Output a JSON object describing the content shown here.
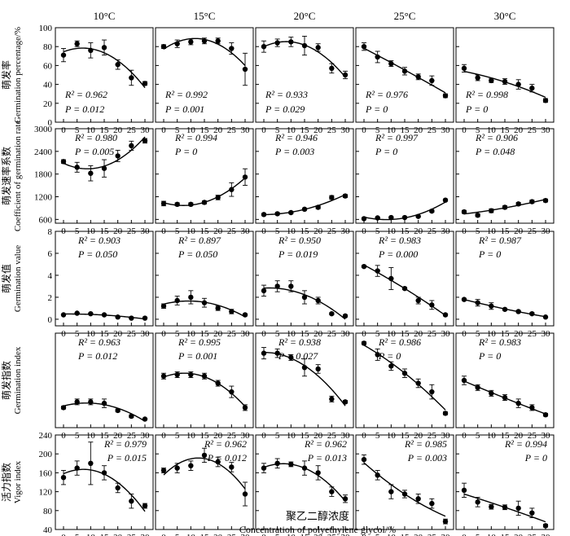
{
  "temperatures": [
    "10°C",
    "15°C",
    "20°C",
    "25°C",
    "30°C"
  ],
  "x_ticks": [
    0,
    5,
    10,
    15,
    20,
    25,
    30
  ],
  "xlabel_cn": "聚乙二醇浓度",
  "xlabel_en": "Concentration of polyethylene glycol/%",
  "rows": [
    {
      "ylabel_cn": "萌发率",
      "ylabel_en": "Germination percentage/%",
      "ylim": [
        0,
        100
      ],
      "yticks": [
        0,
        20,
        40,
        60,
        80,
        100
      ],
      "annot_pos": "bottom-left"
    },
    {
      "ylabel_cn": "萌发速率系数",
      "ylabel_en": "Coefficient of germination rate",
      "ylim": [
        500,
        3000
      ],
      "yticks": [
        600,
        1200,
        1800,
        2400,
        3000
      ],
      "annot_pos": "top-left"
    },
    {
      "ylabel_cn": "萌发值",
      "ylabel_en": "Germination value",
      "ylim": [
        -0.6,
        8
      ],
      "yticks": [
        0,
        2,
        4,
        6,
        8
      ],
      "annot_pos": "top-center"
    },
    {
      "ylabel_cn": "萌发指数",
      "ylabel_en": "Germination index",
      "ylim": [
        0,
        6.6
      ],
      "yticks": [],
      "annot_pos": "top-center"
    },
    {
      "ylabel_cn": "活力指数",
      "ylabel_en": "Vigor index",
      "ylim": [
        40,
        240
      ],
      "yticks": [
        40,
        80,
        120,
        160,
        200,
        240
      ],
      "annot_pos": "top-right"
    }
  ],
  "chart_data": {
    "type": "scatter",
    "x": [
      0,
      5,
      10,
      15,
      20,
      25,
      30
    ],
    "panels": [
      [
        {
          "values": [
            71,
            83,
            76,
            79,
            61,
            47,
            41
          ],
          "errors": [
            7,
            3,
            8,
            8,
            5,
            8,
            2
          ],
          "r2": "R² = 0.962",
          "p": "P = 0.012"
        },
        {
          "values": [
            80,
            83,
            85,
            86,
            86,
            78,
            56
          ],
          "errors": [
            2,
            4,
            3,
            3,
            3,
            6,
            17
          ],
          "r2": "R² = 0.992",
          "p": "P = 0.001"
        },
        {
          "values": [
            80,
            84,
            85,
            81,
            79,
            57,
            50
          ],
          "errors": [
            6,
            4,
            5,
            10,
            4,
            5,
            4
          ],
          "r2": "R² = 0.933",
          "p": "P = 0.029"
        },
        {
          "values": [
            80,
            69,
            62,
            54,
            48,
            44,
            28
          ],
          "errors": [
            4,
            6,
            3,
            4,
            3,
            5,
            2
          ],
          "r2": "R² = 0.976",
          "p": "P = 0"
        },
        {
          "values": [
            57,
            47,
            44,
            43,
            40,
            36,
            23
          ],
          "errors": [
            4,
            3,
            2,
            3,
            5,
            4,
            2
          ],
          "r2": "R² = 0.998",
          "p": "P = 0"
        }
      ],
      [
        {
          "values": [
            2130,
            1980,
            1820,
            1950,
            2280,
            2550,
            2680
          ],
          "errors": [
            50,
            130,
            200,
            230,
            150,
            120,
            60
          ],
          "r2": "R² = 0.980",
          "p": "P = 0.005"
        },
        {
          "values": [
            1020,
            1000,
            1000,
            1050,
            1180,
            1390,
            1720
          ],
          "errors": [
            60,
            40,
            40,
            40,
            60,
            180,
            220
          ],
          "r2": "R² = 0.994",
          "p": "P = 0"
        },
        {
          "values": [
            730,
            750,
            780,
            870,
            920,
            1180,
            1220
          ],
          "errors": [
            30,
            30,
            30,
            30,
            40,
            50,
            40
          ],
          "r2": "R² = 0.946",
          "p": "P = 0.003"
        },
        {
          "values": [
            620,
            640,
            650,
            650,
            680,
            820,
            1110
          ],
          "errors": [
            20,
            20,
            20,
            20,
            20,
            30,
            30
          ],
          "r2": "R² = 0.997",
          "p": "P = 0"
        },
        {
          "values": [
            800,
            710,
            830,
            920,
            1010,
            1070,
            1100
          ],
          "errors": [
            40,
            40,
            50,
            40,
            40,
            40,
            40
          ],
          "r2": "R² = 0.906",
          "p": "P = 0.048"
        }
      ],
      [
        {
          "values": [
            0.4,
            0.55,
            0.5,
            0.4,
            0.2,
            0.1,
            0.1
          ],
          "errors": [
            0.05,
            0.05,
            0.05,
            0.05,
            0.05,
            0.05,
            0.03
          ],
          "r2": "R² = 0.903",
          "p": "P = 0.050"
        },
        {
          "values": [
            1.2,
            1.7,
            2.0,
            1.5,
            1.0,
            0.7,
            0.4
          ],
          "errors": [
            0.2,
            0.4,
            0.6,
            0.4,
            0.2,
            0.2,
            0.1
          ],
          "r2": "R² = 0.897",
          "p": "P = 0.050"
        },
        {
          "values": [
            2.6,
            3.0,
            3.0,
            2.0,
            1.7,
            0.5,
            0.3
          ],
          "errors": [
            0.5,
            0.5,
            0.5,
            0.6,
            0.3,
            0.1,
            0.1
          ],
          "r2": "R² = 0.950",
          "p": "P = 0.019"
        },
        {
          "values": [
            4.8,
            4.4,
            3.7,
            2.8,
            1.7,
            1.3,
            0.4
          ],
          "errors": [
            0.1,
            0.5,
            1.0,
            0.1,
            0.3,
            0.4,
            0.1
          ],
          "r2": "R² = 0.983",
          "p": "P = 0.000"
        },
        {
          "values": [
            1.8,
            1.5,
            1.2,
            0.9,
            0.7,
            0.5,
            0.2
          ],
          "errors": [
            0.1,
            0.3,
            0.3,
            0.1,
            0.1,
            0.1,
            0.05
          ],
          "r2": "R² = 0.987",
          "p": "P = 0"
        }
      ],
      [
        {
          "values": [
            1.4,
            1.8,
            1.8,
            1.7,
            1.2,
            0.8,
            0.6
          ],
          "errors": [
            0.1,
            0.2,
            0.2,
            0.3,
            0.1,
            0.1,
            0.05
          ],
          "r2": "R² = 0.963",
          "p": "P = 0.012"
        },
        {
          "values": [
            3.6,
            3.7,
            3.7,
            3.6,
            3.1,
            2.5,
            1.4
          ],
          "errors": [
            0.2,
            0.2,
            0.2,
            0.2,
            0.2,
            0.4,
            0.2
          ],
          "r2": "R² = 0.995",
          "p": "P = 0.001"
        },
        {
          "values": [
            5.2,
            5.2,
            4.9,
            4.2,
            4.1,
            2.0,
            1.8
          ],
          "errors": [
            0.4,
            0.3,
            0.2,
            0.6,
            0.3,
            0.2,
            0.1
          ],
          "r2": "R² = 0.938",
          "p": "P = 0.027"
        },
        {
          "values": [
            5.9,
            5.1,
            4.3,
            3.8,
            3.1,
            2.5,
            1.0
          ],
          "errors": [
            0.1,
            0.4,
            0.3,
            0.3,
            0.3,
            0.5,
            0.1
          ],
          "r2": "R² = 0.986",
          "p": "P = 0"
        },
        {
          "values": [
            3.3,
            2.8,
            2.4,
            2.1,
            1.7,
            1.4,
            0.9
          ],
          "errors": [
            0.3,
            0.2,
            0.2,
            0.2,
            0.3,
            0.2,
            0.1
          ],
          "r2": "R² = 0.983",
          "p": "P = 0"
        }
      ],
      [
        {
          "values": [
            150,
            170,
            180,
            160,
            128,
            100,
            90
          ],
          "errors": [
            15,
            15,
            45,
            15,
            10,
            15,
            5
          ],
          "r2": "R² = 0.979",
          "p": "P = 0.015"
        },
        {
          "values": [
            165,
            170,
            175,
            197,
            183,
            172,
            115
          ],
          "errors": [
            5,
            10,
            10,
            15,
            10,
            10,
            25
          ],
          "r2": "R² = 0.962",
          "p": "P = 0.012"
        },
        {
          "values": [
            170,
            180,
            178,
            170,
            160,
            120,
            105
          ],
          "errors": [
            10,
            10,
            5,
            15,
            15,
            10,
            8
          ],
          "r2": "R² = 0.962",
          "p": "P = 0.013"
        },
        {
          "values": [
            188,
            155,
            120,
            115,
            105,
            95,
            57
          ],
          "errors": [
            10,
            10,
            15,
            8,
            10,
            10,
            5
          ],
          "r2": "R² = 0.985",
          "p": "P = 0.003"
        },
        {
          "values": [
            123,
            98,
            88,
            87,
            85,
            75,
            48
          ],
          "errors": [
            15,
            10,
            5,
            5,
            15,
            10,
            3
          ],
          "r2": "R² = 0.994",
          "p": "P = 0"
        }
      ]
    ]
  }
}
